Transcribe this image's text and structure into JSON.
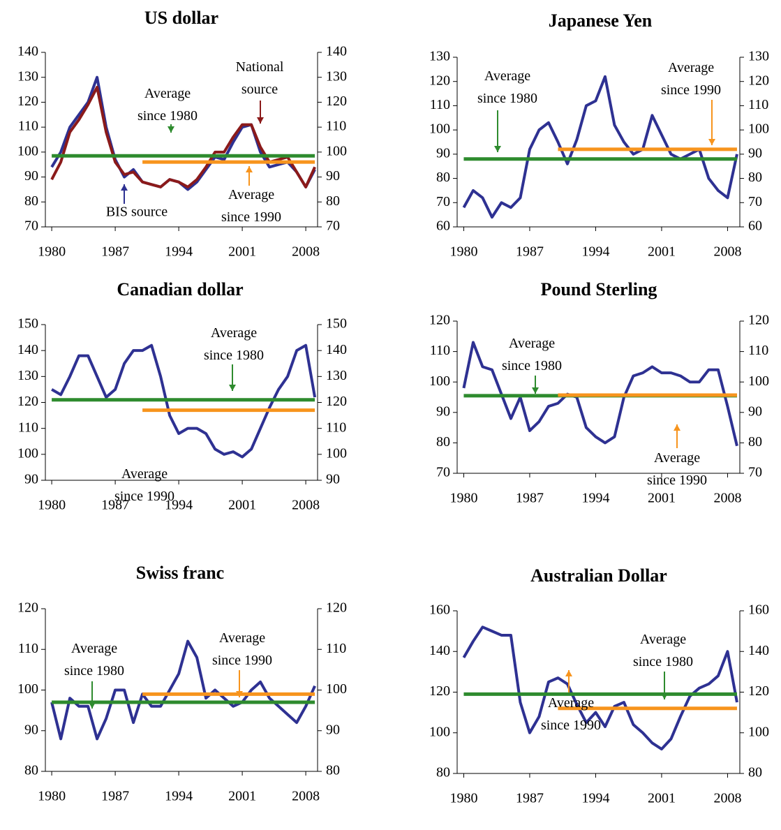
{
  "chart_data": [
    {
      "type": "line",
      "title": "US dollar",
      "x": [
        1980,
        1981,
        1982,
        1983,
        1984,
        1985,
        1986,
        1987,
        1988,
        1989,
        1990,
        1991,
        1992,
        1993,
        1994,
        1995,
        1996,
        1997,
        1998,
        1999,
        2000,
        2001,
        2002,
        2003,
        2004,
        2005,
        2006,
        2007,
        2008,
        2009
      ],
      "series": [
        {
          "name": "BIS source",
          "color": "#2e3192",
          "values": [
            94,
            100,
            110,
            115,
            120,
            130,
            110,
            97,
            90,
            93,
            88,
            87,
            86,
            89,
            88,
            85,
            88,
            93,
            98,
            97,
            104,
            110,
            111,
            100,
            94,
            95,
            96,
            92,
            86,
            93
          ]
        },
        {
          "name": "National source",
          "color": "#8b1a1a",
          "values": [
            89,
            96,
            108,
            113,
            119,
            126,
            108,
            96,
            91,
            92,
            88,
            87,
            86,
            89,
            88,
            86,
            89,
            94,
            100,
            100,
            106,
            111,
            111,
            102,
            96,
            97,
            98,
            92,
            86,
            94
          ]
        }
      ],
      "reference_lines": [
        {
          "text": "Average since 1980",
          "value": 98.5,
          "x": [
            1980,
            2009
          ],
          "color": "#2e8b2e"
        },
        {
          "text": "Average since 1990",
          "value": 96,
          "x": [
            1990,
            2009
          ],
          "color": "#f7941d"
        }
      ],
      "xlim": [
        1979.3,
        2009.3
      ],
      "xticks": [
        1980,
        1987,
        1994,
        2001,
        2008
      ],
      "ylim": [
        70,
        140
      ],
      "yticks": [
        70,
        80,
        90,
        100,
        110,
        120,
        130,
        140
      ]
    },
    {
      "type": "line",
      "title": "Japanese Yen",
      "x": [
        1980,
        1981,
        1982,
        1983,
        1984,
        1985,
        1986,
        1987,
        1988,
        1989,
        1990,
        1991,
        1992,
        1993,
        1994,
        1995,
        1996,
        1997,
        1998,
        1999,
        2000,
        2001,
        2002,
        2003,
        2004,
        2005,
        2006,
        2007,
        2008,
        2009
      ],
      "series": [
        {
          "color": "#2e3192",
          "values": [
            68,
            75,
            72,
            64,
            70,
            68,
            72,
            92,
            100,
            103,
            95,
            86,
            96,
            110,
            112,
            122,
            102,
            95,
            90,
            92,
            106,
            98,
            90,
            88,
            90,
            92,
            80,
            75,
            72,
            90
          ]
        }
      ],
      "reference_lines": [
        {
          "text": "Average since 1980",
          "value": 88,
          "x": [
            1980,
            2009
          ],
          "color": "#2e8b2e"
        },
        {
          "text": "Average since 1990",
          "value": 92,
          "x": [
            1990,
            2009
          ],
          "color": "#f7941d"
        }
      ],
      "xlim": [
        1979.3,
        2009.3
      ],
      "xticks": [
        1980,
        1987,
        1994,
        2001,
        2008
      ],
      "ylim": [
        60,
        130
      ],
      "yticks": [
        60,
        70,
        80,
        90,
        100,
        110,
        120,
        130
      ]
    },
    {
      "type": "line",
      "title": "Canadian dollar",
      "x": [
        1980,
        1981,
        1982,
        1983,
        1984,
        1985,
        1986,
        1987,
        1988,
        1989,
        1990,
        1991,
        1992,
        1993,
        1994,
        1995,
        1996,
        1997,
        1998,
        1999,
        2000,
        2001,
        2002,
        2003,
        2004,
        2005,
        2006,
        2007,
        2008,
        2009
      ],
      "series": [
        {
          "color": "#2e3192",
          "values": [
            125,
            123,
            130,
            138,
            138,
            130,
            122,
            125,
            135,
            140,
            140,
            142,
            130,
            115,
            108,
            110,
            110,
            108,
            102,
            100,
            101,
            99,
            102,
            110,
            118,
            125,
            130,
            140,
            142,
            122
          ]
        }
      ],
      "reference_lines": [
        {
          "text": "Average since 1980",
          "value": 121,
          "x": [
            1980,
            2009
          ],
          "color": "#2e8b2e"
        },
        {
          "text": "Average since 1990",
          "value": 117,
          "x": [
            1990,
            2009
          ],
          "color": "#f7941d"
        }
      ],
      "xlim": [
        1979.3,
        2009.3
      ],
      "xticks": [
        1980,
        1987,
        1994,
        2001,
        2008
      ],
      "ylim": [
        90,
        150
      ],
      "yticks": [
        90,
        100,
        110,
        120,
        130,
        140,
        150
      ]
    },
    {
      "type": "line",
      "title": "Pound Sterling",
      "x": [
        1980,
        1981,
        1982,
        1983,
        1984,
        1985,
        1986,
        1987,
        1988,
        1989,
        1990,
        1991,
        1992,
        1993,
        1994,
        1995,
        1996,
        1997,
        1998,
        1999,
        2000,
        2001,
        2002,
        2003,
        2004,
        2005,
        2006,
        2007,
        2008,
        2009
      ],
      "series": [
        {
          "color": "#2e3192",
          "values": [
            98,
            113,
            105,
            104,
            96,
            88,
            95,
            84,
            87,
            92,
            93,
            96,
            95,
            85,
            82,
            80,
            82,
            95,
            102,
            103,
            105,
            103,
            103,
            102,
            100,
            100,
            104,
            104,
            92,
            79
          ]
        }
      ],
      "reference_lines": [
        {
          "text": "Average since 1980",
          "value": 95.5,
          "x": [
            1980,
            2009
          ],
          "color": "#2e8b2e"
        },
        {
          "text": "Average since 1990",
          "value": 95.7,
          "x": [
            1990,
            2009
          ],
          "color": "#f7941d"
        }
      ],
      "xlim": [
        1979.3,
        2009.3
      ],
      "xticks": [
        1980,
        1987,
        1994,
        2001,
        2008
      ],
      "ylim": [
        70,
        120
      ],
      "yticks": [
        70,
        80,
        90,
        100,
        110,
        120
      ]
    },
    {
      "type": "line",
      "title": "Swiss franc",
      "x": [
        1980,
        1981,
        1982,
        1983,
        1984,
        1985,
        1986,
        1987,
        1988,
        1989,
        1990,
        1991,
        1992,
        1993,
        1994,
        1995,
        1996,
        1997,
        1998,
        1999,
        2000,
        2001,
        2002,
        2003,
        2004,
        2005,
        2006,
        2007,
        2008,
        2009
      ],
      "series": [
        {
          "color": "#2e3192",
          "values": [
            97,
            88,
            98,
            96,
            96,
            88,
            93,
            100,
            100,
            92,
            99,
            96,
            96,
            100,
            104,
            112,
            108,
            98,
            100,
            98,
            96,
            97,
            100,
            102,
            98,
            96,
            94,
            92,
            96,
            101
          ]
        }
      ],
      "reference_lines": [
        {
          "text": "Average since 1980",
          "value": 97,
          "x": [
            1980,
            2009
          ],
          "color": "#2e8b2e"
        },
        {
          "text": "Average since 1990",
          "value": 99,
          "x": [
            1990,
            2009
          ],
          "color": "#f7941d"
        }
      ],
      "xlim": [
        1979.3,
        2009.3
      ],
      "xticks": [
        1980,
        1987,
        1994,
        2001,
        2008
      ],
      "ylim": [
        80,
        120
      ],
      "yticks": [
        80,
        90,
        100,
        110,
        120
      ]
    },
    {
      "type": "line",
      "title": "Australian Dollar",
      "x": [
        1980,
        1981,
        1982,
        1983,
        1984,
        1985,
        1986,
        1987,
        1988,
        1989,
        1990,
        1991,
        1992,
        1993,
        1994,
        1995,
        1996,
        1997,
        1998,
        1999,
        2000,
        2001,
        2002,
        2003,
        2004,
        2005,
        2006,
        2007,
        2008,
        2009
      ],
      "series": [
        {
          "color": "#2e3192",
          "values": [
            137,
            145,
            152,
            150,
            148,
            148,
            115,
            100,
            108,
            125,
            127,
            124,
            114,
            105,
            110,
            103,
            113,
            115,
            104,
            100,
            95,
            92,
            97,
            108,
            118,
            122,
            124,
            128,
            140,
            115
          ]
        }
      ],
      "reference_lines": [
        {
          "text": "Average since 1980",
          "value": 119,
          "x": [
            1980,
            2009
          ],
          "color": "#2e8b2e"
        },
        {
          "text": "Average since 1990",
          "value": 112,
          "x": [
            1990,
            2009
          ],
          "color": "#f7941d"
        }
      ],
      "xlim": [
        1979.3,
        2009.3
      ],
      "xticks": [
        1980,
        1987,
        1994,
        2001,
        2008
      ],
      "ylim": [
        80,
        160
      ],
      "yticks": [
        80,
        100,
        120,
        140,
        160
      ]
    }
  ]
}
